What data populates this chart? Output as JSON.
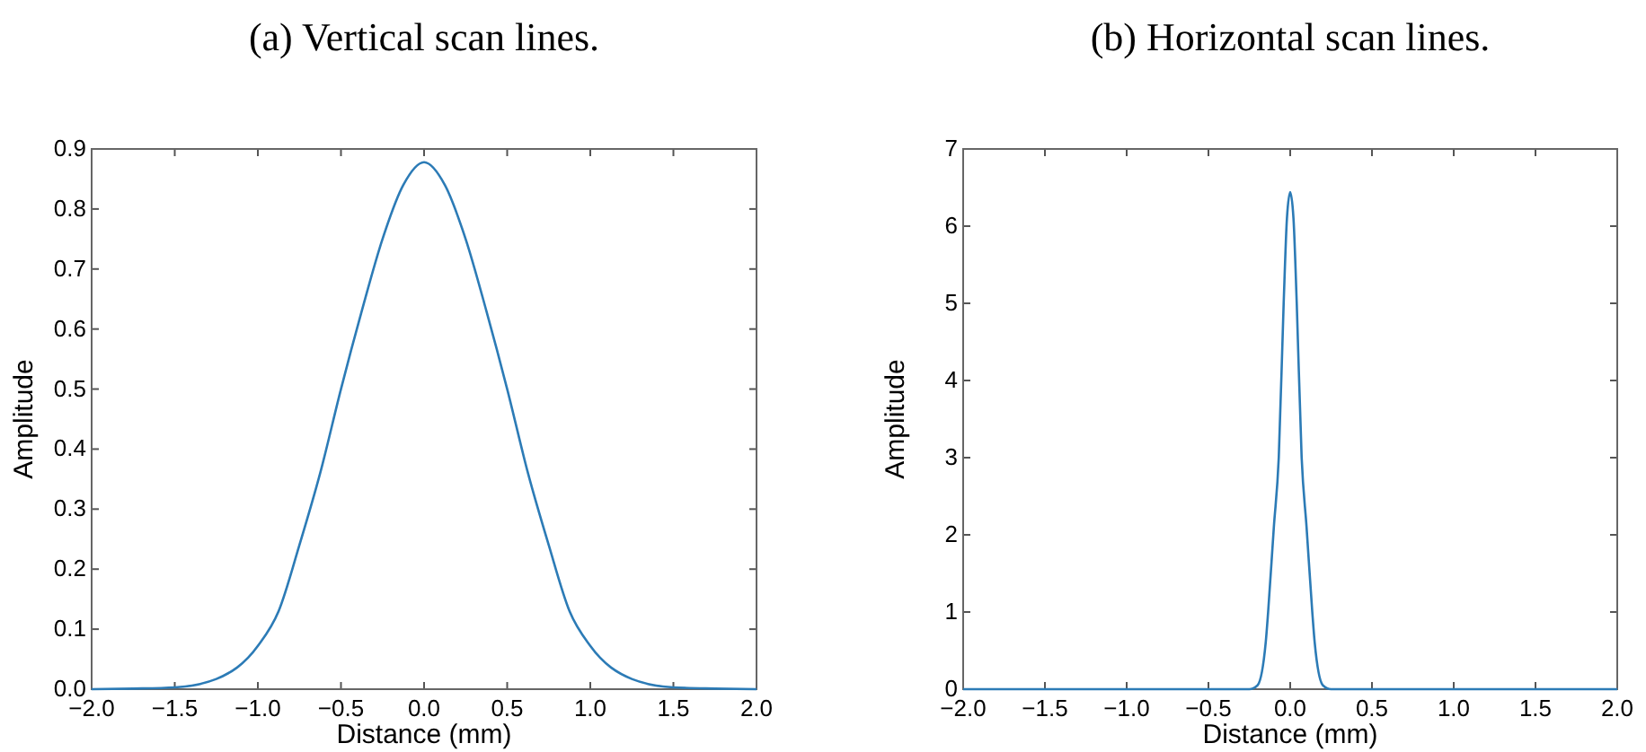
{
  "chart_data": [
    {
      "type": "line",
      "title": "(a) Vertical scan lines.",
      "xlabel": "Distance (mm)",
      "ylabel": "Amplitude",
      "xlim": [
        -2,
        2
      ],
      "ylim": [
        0,
        0.9
      ],
      "xticks": [
        {
          "value": -2,
          "label": "−2.0"
        },
        {
          "value": -1.5,
          "label": "−1.5"
        },
        {
          "value": -1,
          "label": "−1.0"
        },
        {
          "value": -0.5,
          "label": "−0.5"
        },
        {
          "value": 0,
          "label": "0.0"
        },
        {
          "value": 0.5,
          "label": "0.5"
        },
        {
          "value": 1,
          "label": "1.0"
        },
        {
          "value": 1.5,
          "label": "1.5"
        },
        {
          "value": 2,
          "label": "2.0"
        }
      ],
      "yticks": [
        {
          "value": 0,
          "label": "0.0"
        },
        0.1,
        0.2,
        0.3,
        0.4,
        0.5,
        0.6,
        0.7,
        0.8,
        0.9
      ],
      "grid": false,
      "series": [
        {
          "color": "#2c7bb6",
          "x": [
            -2,
            -1.75,
            -1.5,
            -1.25,
            -1,
            -0.875,
            -0.75,
            -0.625,
            -0.5,
            -0.375,
            -0.25,
            -0.125,
            0,
            0.125,
            0.25,
            0.375,
            0.5,
            0.625,
            0.75,
            0.875,
            1,
            1.25,
            1.5,
            1.75,
            2
          ],
          "values": [
            0,
            0.001,
            0.003,
            0.017,
            0.072,
            0.13,
            0.24,
            0.36,
            0.5,
            0.63,
            0.75,
            0.84,
            0.878,
            0.84,
            0.75,
            0.63,
            0.5,
            0.36,
            0.24,
            0.13,
            0.072,
            0.017,
            0.003,
            0.001,
            0
          ]
        }
      ]
    },
    {
      "type": "line",
      "title": "(b) Horizontal scan lines.",
      "xlabel": "Distance (mm)",
      "ylabel": "Amplitude",
      "xlim": [
        -2,
        2
      ],
      "ylim": [
        0,
        7
      ],
      "xticks": [
        {
          "value": -2,
          "label": "−2.0"
        },
        {
          "value": -1.5,
          "label": "−1.5"
        },
        {
          "value": -1,
          "label": "−1.0"
        },
        {
          "value": -0.5,
          "label": "−0.5"
        },
        {
          "value": 0,
          "label": "0.0"
        },
        {
          "value": 0.5,
          "label": "0.5"
        },
        {
          "value": 1,
          "label": "1.0"
        },
        {
          "value": 1.5,
          "label": "1.5"
        },
        {
          "value": 2,
          "label": "2.0"
        }
      ],
      "yticks": [
        0,
        1,
        2,
        3,
        4,
        5,
        6,
        7
      ],
      "grid": false,
      "series": [
        {
          "color": "#2c7bb6",
          "x": [
            -2,
            -0.25,
            -0.2,
            -0.15,
            -0.135,
            -0.1,
            -0.07,
            -0.04,
            -0.02,
            0,
            0.02,
            0.04,
            0.07,
            0.1,
            0.135,
            0.15,
            0.2,
            0.25,
            2
          ],
          "values": [
            0,
            0,
            0.05,
            0.6,
            1,
            2.1,
            3,
            5,
            6.1,
            6.44,
            6.1,
            5,
            3,
            2.1,
            1,
            0.6,
            0.05,
            0,
            0
          ]
        }
      ]
    }
  ]
}
